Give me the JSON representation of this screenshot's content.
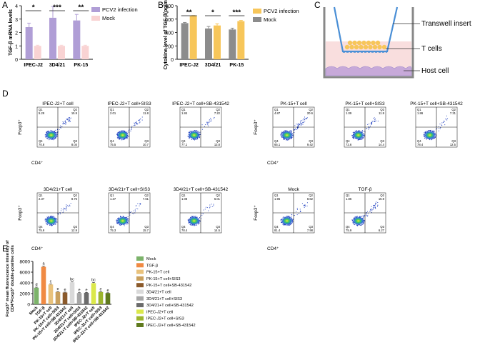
{
  "panel_letters": {
    "a": "A",
    "b": "B",
    "c": "C",
    "d": "D",
    "e": "E"
  },
  "colors": {
    "pcv2": "#b09ed6",
    "mock_pink": "#f9d3d3",
    "orange": "#f7c65a",
    "grey": "#8c8c8c",
    "flow_blue": "#1f3fbf",
    "flow_green": "#2fbf4f",
    "flow_yellow": "#ffe43a",
    "e_mock": "#7cb36a",
    "e_tgf": "#f08a43",
    "e_pk": "#e9c27c",
    "e_pk_sis3": "#c9a05d",
    "e_pk_sb": "#8b5a2b",
    "e_3d4": "#d9d9d9",
    "e_3d4_sis3": "#a6a6a6",
    "e_3d4_sb": "#6b6b6b",
    "e_ipec": "#dbe84a",
    "e_ipec_sis3": "#9cb52e",
    "e_ipec_sb": "#5f7a1e"
  },
  "chart_data": [
    {
      "id": "A",
      "type": "bar",
      "ylabel": "TGF-β mRNA levels",
      "categories": [
        "IPEC-J2",
        "3D4/21",
        "PK-15"
      ],
      "series": [
        {
          "name": "PCV2 infection",
          "values": [
            2.4,
            3.1,
            2.9
          ],
          "errors": [
            0.3,
            0.85,
            0.45
          ]
        },
        {
          "name": "Mock",
          "values": [
            1.0,
            1.0,
            1.0
          ],
          "errors": [
            0.05,
            0.05,
            0.05
          ]
        }
      ],
      "ylim": [
        0,
        4
      ],
      "yticks": [
        0,
        1,
        2,
        3,
        4
      ],
      "significance": [
        "*",
        "***",
        "**"
      ]
    },
    {
      "id": "B",
      "type": "bar",
      "ylabel": "Cytokine level of TGF-β(pg/mL)",
      "categories": [
        "IPEC-J2",
        "3D4/21",
        "PK-15"
      ],
      "series": [
        {
          "name": "Mock",
          "values": [
            540,
            460,
            445
          ],
          "errors": [
            10,
            30,
            20
          ]
        },
        {
          "name": "PCV2 infection",
          "values": [
            645,
            505,
            570
          ],
          "errors": [
            8,
            25,
            10
          ]
        }
      ],
      "ylim": [
        0,
        800
      ],
      "yticks": [
        0,
        200,
        400,
        600,
        800
      ],
      "significance": [
        "**",
        "*",
        "***"
      ]
    },
    {
      "id": "E",
      "type": "bar",
      "ylabel_line1": "Foxp3⁺ mean fluorescence intensity of",
      "ylabel_line2": "CD4⁺Foxp3⁺ double-positive cells",
      "categories": [
        "Mock",
        "TGF-β",
        "PK-15+T cell",
        "PK-15+T cell+SIS3",
        "PK-15+T cell+SB-431542",
        "3D4/21+T cell",
        "3D4/21+T cell+SIS3",
        "3D4/21+T cell+SB-431542",
        "IPEC-J2+T cell",
        "IPEC-J2+T cell+SIS3",
        "IPEC-J2+T cell+SB-431542"
      ],
      "values": [
        3100,
        7000,
        3700,
        2300,
        2200,
        4100,
        2100,
        2150,
        3950,
        2300,
        2100
      ],
      "errors": [
        100,
        120,
        100,
        80,
        80,
        100,
        70,
        70,
        120,
        60,
        60
      ],
      "letters": [
        "d",
        "a",
        "c",
        "e",
        "e",
        "bc",
        "e",
        "e",
        "bc",
        "e",
        "e"
      ],
      "ylim": [
        0,
        8000
      ],
      "yticks": [
        0,
        2000,
        4000,
        6000,
        8000
      ]
    }
  ],
  "panel_c": {
    "transwell_label": "Transwell insert",
    "tcell_label": "T cells",
    "host_label": "Host cell"
  },
  "flow": {
    "xlabel": "CD4⁺",
    "ylabel": "Foxp3⁺",
    "quadrant_labels": {
      "q1": "Q1",
      "q2": "Q2",
      "q3": "Q3",
      "q4": "Q4"
    },
    "plots": [
      {
        "title": "IPEC-J2+T cell",
        "q1": "5.29",
        "q2": "15.9",
        "q3": "8.04",
        "q4": "70.8"
      },
      {
        "title": "IPEC-J2+T cell+SIS3",
        "q1": "2.01",
        "q2": "11.8",
        "q3": "10.7",
        "q4": "75.5"
      },
      {
        "title": "IPEC-J2+T cell+SB-431542",
        "q1": "1.84",
        "q2": "7.22",
        "q3": "13.8",
        "q4": "77.1"
      },
      {
        "title": "PK-15+T cell",
        "q1": "4.87",
        "q2": "20.6",
        "q3": "9.42",
        "q4": "65.1"
      },
      {
        "title": "PK-15+T cell+SIS3",
        "q1": "1.09",
        "q2": "11.9",
        "q3": "14.4",
        "q4": "72.6"
      },
      {
        "title": "PK-15+T cell+SB-431542",
        "q1": "1.86",
        "q2": "7.21",
        "q3": "12.5",
        "q4": "78.4"
      },
      {
        "title": "3D4/21+T cell",
        "q1": "2.37",
        "q2": "8.76",
        "q3": "12.9",
        "q4": "75.9"
      },
      {
        "title": "3D4/21+T cell+SIS3",
        "q1": "1.37",
        "q2": "7.61",
        "q3": "15.7",
        "q4": "75.3"
      },
      {
        "title": "3D4/21+T cell+SB-431542",
        "q1": "1.08",
        "q2": "6.01",
        "q3": "14.5",
        "q4": "78.4"
      },
      {
        "title": "Mock",
        "q1": "1.95",
        "q2": "8.62",
        "q3": "7.98",
        "q4": "81.4"
      },
      {
        "title": "TGF-β",
        "q1": "1.86",
        "q2": "15.9",
        "q3": "6.27",
        "q4": "75.9"
      }
    ]
  }
}
